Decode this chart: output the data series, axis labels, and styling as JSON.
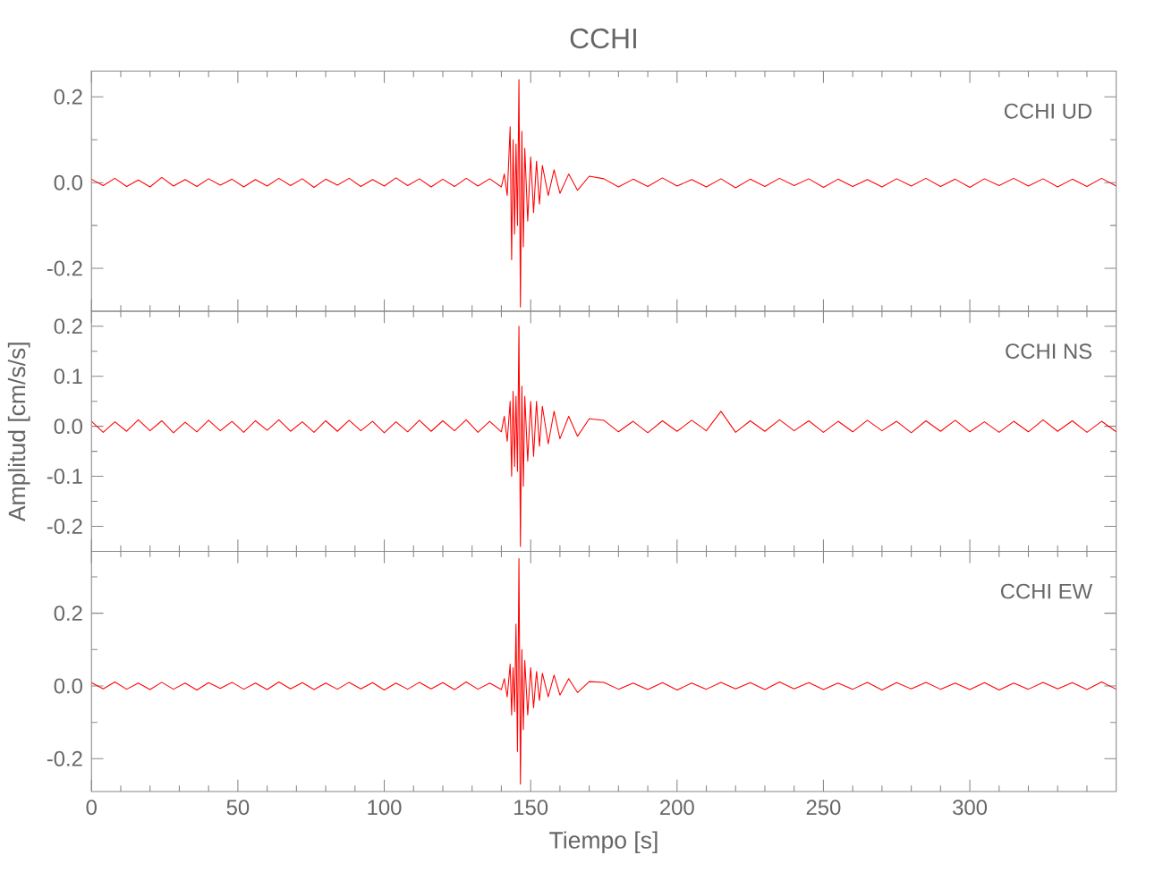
{
  "chart_data": [
    {
      "type": "line",
      "title": "CCHI",
      "annotations": [
        "CCHI   UD"
      ],
      "tick_labels": "y",
      "xlim": [
        0,
        350
      ],
      "ylim": [
        -0.3,
        0.26
      ],
      "xticks": [
        0,
        {
          "value": 10,
          "label": null
        },
        {
          "value": 20,
          "label": null
        },
        {
          "value": 30,
          "label": null
        },
        {
          "value": 40,
          "label": null
        },
        50,
        {
          "value": 60,
          "label": null
        },
        {
          "value": 70,
          "label": null
        },
        {
          "value": 80,
          "label": null
        },
        {
          "value": 90,
          "label": null
        },
        100,
        {
          "value": 110,
          "label": null
        },
        {
          "value": 120,
          "label": null
        },
        {
          "value": 130,
          "label": null
        },
        {
          "value": 140,
          "label": null
        },
        150,
        {
          "value": 160,
          "label": null
        },
        {
          "value": 170,
          "label": null
        },
        {
          "value": 180,
          "label": null
        },
        {
          "value": 190,
          "label": null
        },
        200,
        {
          "value": 210,
          "label": null
        },
        {
          "value": 220,
          "label": null
        },
        {
          "value": 230,
          "label": null
        },
        {
          "value": 240,
          "label": null
        },
        250,
        {
          "value": 260,
          "label": null
        },
        {
          "value": 270,
          "label": null
        },
        {
          "value": 280,
          "label": null
        },
        {
          "value": 290,
          "label": null
        },
        300,
        {
          "value": 310,
          "label": null
        },
        {
          "value": 320,
          "label": null
        },
        {
          "value": 330,
          "label": null
        },
        {
          "value": 340,
          "label": null
        }
      ],
      "yticks": [
        -0.2,
        {
          "value": -0.1,
          "label": null
        },
        {
          "value": 0,
          "label": "0.0"
        },
        {
          "value": 0.1,
          "label": null
        },
        0.2
      ],
      "x": [
        0,
        4,
        8,
        12,
        16,
        20,
        24,
        28,
        32,
        36,
        40,
        44,
        48,
        52,
        56,
        60,
        64,
        68,
        72,
        76,
        80,
        84,
        88,
        92,
        96,
        100,
        104,
        108,
        112,
        116,
        120,
        124,
        128,
        132,
        136,
        140,
        141,
        142,
        143,
        143.5,
        144,
        144.5,
        145,
        145.5,
        146,
        146.5,
        147,
        147.5,
        148,
        149,
        150,
        151,
        152,
        153,
        154,
        156,
        158,
        160,
        163,
        166,
        170,
        175,
        180,
        185,
        190,
        195,
        200,
        205,
        210,
        215,
        220,
        225,
        230,
        235,
        240,
        245,
        250,
        255,
        260,
        265,
        270,
        275,
        280,
        285,
        290,
        295,
        300,
        305,
        310,
        315,
        320,
        325,
        330,
        335,
        340,
        345,
        350
      ],
      "series": [
        {
          "color": "#ff0000",
          "values": [
            0.008,
            -0.007,
            0.01,
            -0.009,
            0.006,
            -0.01,
            0.012,
            -0.008,
            0.007,
            -0.009,
            0.009,
            -0.006,
            0.008,
            -0.01,
            0.007,
            -0.008,
            0.01,
            -0.007,
            0.009,
            -0.011,
            0.008,
            -0.006,
            0.01,
            -0.009,
            0.007,
            -0.008,
            0.011,
            -0.007,
            0.009,
            -0.01,
            0.008,
            -0.009,
            0.01,
            -0.008,
            0.009,
            -0.01,
            0.02,
            -0.03,
            0.13,
            -0.18,
            0.1,
            -0.12,
            0.09,
            -0.1,
            0.24,
            -0.29,
            0.12,
            -0.15,
            0.08,
            -0.09,
            0.06,
            -0.07,
            0.05,
            -0.05,
            0.04,
            -0.03,
            0.03,
            -0.025,
            0.02,
            -0.018,
            0.015,
            0.009,
            -0.01,
            0.008,
            -0.009,
            0.011,
            -0.008,
            0.007,
            -0.01,
            0.009,
            -0.012,
            0.008,
            -0.009,
            0.01,
            -0.007,
            0.009,
            -0.011,
            0.008,
            -0.009,
            0.007,
            -0.01,
            0.009,
            -0.008,
            0.01,
            -0.009,
            0.008,
            -0.011,
            0.009,
            -0.007,
            0.01,
            -0.008,
            0.009,
            -0.01,
            0.008,
            -0.009,
            0.01,
            -0.008
          ]
        }
      ]
    },
    {
      "type": "line",
      "ylabel": "Amplitud [cm/s/s]",
      "annotations": [
        "CCHI   NS"
      ],
      "tick_labels": "y",
      "xlim": [
        0,
        350
      ],
      "ylim": [
        -0.25,
        0.23
      ],
      "xticks": [
        0,
        {
          "value": 10,
          "label": null
        },
        {
          "value": 20,
          "label": null
        },
        {
          "value": 30,
          "label": null
        },
        {
          "value": 40,
          "label": null
        },
        50,
        {
          "value": 60,
          "label": null
        },
        {
          "value": 70,
          "label": null
        },
        {
          "value": 80,
          "label": null
        },
        {
          "value": 90,
          "label": null
        },
        100,
        {
          "value": 110,
          "label": null
        },
        {
          "value": 120,
          "label": null
        },
        {
          "value": 130,
          "label": null
        },
        {
          "value": 140,
          "label": null
        },
        150,
        {
          "value": 160,
          "label": null
        },
        {
          "value": 170,
          "label": null
        },
        {
          "value": 180,
          "label": null
        },
        {
          "value": 190,
          "label": null
        },
        200,
        {
          "value": 210,
          "label": null
        },
        {
          "value": 220,
          "label": null
        },
        {
          "value": 230,
          "label": null
        },
        {
          "value": 240,
          "label": null
        },
        250,
        {
          "value": 260,
          "label": null
        },
        {
          "value": 270,
          "label": null
        },
        {
          "value": 280,
          "label": null
        },
        {
          "value": 290,
          "label": null
        },
        300,
        {
          "value": 310,
          "label": null
        },
        {
          "value": 320,
          "label": null
        },
        {
          "value": 330,
          "label": null
        },
        {
          "value": 340,
          "label": null
        }
      ],
      "yticks": [
        -0.2,
        {
          "value": -0.15,
          "label": null
        },
        -0.1,
        {
          "value": -0.05,
          "label": null
        },
        {
          "value": 0,
          "label": "0.0"
        },
        {
          "value": 0.05,
          "label": null
        },
        0.1,
        {
          "value": 0.15,
          "label": null
        },
        0.2
      ],
      "x": [
        0,
        4,
        8,
        12,
        16,
        20,
        24,
        28,
        32,
        36,
        40,
        44,
        48,
        52,
        56,
        60,
        64,
        68,
        72,
        76,
        80,
        84,
        88,
        92,
        96,
        100,
        104,
        108,
        112,
        116,
        120,
        124,
        128,
        132,
        136,
        140,
        141,
        142,
        143,
        143.5,
        144,
        144.5,
        145,
        145.5,
        146,
        146.5,
        147,
        147.5,
        148,
        149,
        150,
        151,
        152,
        153,
        154,
        156,
        158,
        160,
        163,
        166,
        170,
        175,
        180,
        185,
        190,
        195,
        200,
        205,
        210,
        215,
        220,
        225,
        230,
        235,
        240,
        245,
        250,
        255,
        260,
        265,
        270,
        275,
        280,
        285,
        290,
        295,
        300,
        305,
        310,
        315,
        320,
        325,
        330,
        335,
        340,
        345,
        350
      ],
      "series": [
        {
          "color": "#ff0000",
          "values": [
            0.01,
            -0.012,
            0.009,
            -0.01,
            0.013,
            -0.009,
            0.011,
            -0.013,
            0.008,
            -0.011,
            0.012,
            -0.009,
            0.01,
            -0.012,
            0.011,
            -0.008,
            0.013,
            -0.01,
            0.009,
            -0.012,
            0.011,
            -0.01,
            0.012,
            -0.009,
            0.01,
            -0.013,
            0.009,
            -0.011,
            0.012,
            -0.01,
            0.011,
            -0.009,
            0.013,
            -0.012,
            0.01,
            -0.011,
            0.02,
            -0.03,
            0.05,
            -0.1,
            0.07,
            -0.08,
            0.06,
            -0.09,
            0.2,
            -0.24,
            0.08,
            -0.12,
            0.06,
            -0.07,
            0.05,
            -0.06,
            0.05,
            -0.04,
            0.04,
            -0.035,
            0.03,
            -0.025,
            0.02,
            -0.02,
            0.015,
            0.012,
            -0.011,
            0.01,
            -0.013,
            0.011,
            -0.01,
            0.012,
            -0.009,
            0.03,
            -0.012,
            0.011,
            -0.01,
            0.013,
            -0.009,
            0.011,
            -0.012,
            0.01,
            -0.011,
            0.012,
            -0.009,
            0.01,
            -0.013,
            0.011,
            -0.01,
            0.012,
            -0.011,
            0.009,
            -0.012,
            0.01,
            -0.011,
            0.013,
            -0.01,
            0.011,
            -0.012,
            0.01,
            -0.011
          ]
        }
      ]
    },
    {
      "type": "line",
      "xlabel": "Tiempo [s]",
      "annotations": [
        "CCHI   EW"
      ],
      "xlim": [
        0,
        350
      ],
      "ylim": [
        -0.29,
        0.37
      ],
      "xticks": [
        0,
        {
          "value": 10,
          "label": null
        },
        {
          "value": 20,
          "label": null
        },
        {
          "value": 30,
          "label": null
        },
        {
          "value": 40,
          "label": null
        },
        50,
        {
          "value": 60,
          "label": null
        },
        {
          "value": 70,
          "label": null
        },
        {
          "value": 80,
          "label": null
        },
        {
          "value": 90,
          "label": null
        },
        100,
        {
          "value": 110,
          "label": null
        },
        {
          "value": 120,
          "label": null
        },
        {
          "value": 130,
          "label": null
        },
        {
          "value": 140,
          "label": null
        },
        150,
        {
          "value": 160,
          "label": null
        },
        {
          "value": 170,
          "label": null
        },
        {
          "value": 180,
          "label": null
        },
        {
          "value": 190,
          "label": null
        },
        200,
        {
          "value": 210,
          "label": null
        },
        {
          "value": 220,
          "label": null
        },
        {
          "value": 230,
          "label": null
        },
        {
          "value": 240,
          "label": null
        },
        250,
        {
          "value": 260,
          "label": null
        },
        {
          "value": 270,
          "label": null
        },
        {
          "value": 280,
          "label": null
        },
        {
          "value": 290,
          "label": null
        },
        300,
        {
          "value": 310,
          "label": null
        },
        {
          "value": 320,
          "label": null
        },
        {
          "value": 330,
          "label": null
        },
        {
          "value": 340,
          "label": null
        }
      ],
      "yticks": [
        -0.2,
        {
          "value": -0.1,
          "label": null
        },
        {
          "value": 0,
          "label": "0.0"
        },
        {
          "value": 0.1,
          "label": null
        },
        0.2,
        {
          "value": 0.3,
          "label": null
        }
      ],
      "x": [
        0,
        4,
        8,
        12,
        16,
        20,
        24,
        28,
        32,
        36,
        40,
        44,
        48,
        52,
        56,
        60,
        64,
        68,
        72,
        76,
        80,
        84,
        88,
        92,
        96,
        100,
        104,
        108,
        112,
        116,
        120,
        124,
        128,
        132,
        136,
        140,
        141,
        142,
        143,
        143.5,
        144,
        144.5,
        145,
        145.5,
        146,
        146.5,
        147,
        147.5,
        148,
        149,
        150,
        151,
        152,
        153,
        154,
        156,
        158,
        160,
        163,
        166,
        170,
        175,
        180,
        185,
        190,
        195,
        200,
        205,
        210,
        215,
        220,
        225,
        230,
        235,
        240,
        245,
        250,
        255,
        260,
        265,
        270,
        275,
        280,
        285,
        290,
        295,
        300,
        305,
        310,
        315,
        320,
        325,
        330,
        335,
        340,
        345,
        350
      ],
      "series": [
        {
          "color": "#ff0000",
          "values": [
            0.009,
            -0.008,
            0.011,
            -0.009,
            0.008,
            -0.01,
            0.01,
            -0.009,
            0.008,
            -0.011,
            0.009,
            -0.007,
            0.01,
            -0.009,
            0.008,
            -0.01,
            0.011,
            -0.008,
            0.009,
            -0.01,
            0.008,
            -0.009,
            0.01,
            -0.008,
            0.009,
            -0.011,
            0.008,
            -0.009,
            0.01,
            -0.008,
            0.009,
            -0.01,
            0.011,
            -0.009,
            0.008,
            -0.01,
            0.02,
            -0.03,
            0.06,
            -0.08,
            0.05,
            -0.07,
            0.17,
            -0.18,
            0.35,
            -0.27,
            0.1,
            -0.12,
            0.07,
            -0.08,
            0.05,
            -0.06,
            0.04,
            -0.04,
            0.035,
            -0.03,
            0.03,
            -0.025,
            0.02,
            -0.018,
            0.012,
            0.01,
            -0.009,
            0.008,
            -0.01,
            0.009,
            -0.011,
            0.008,
            -0.009,
            0.01,
            -0.008,
            0.009,
            -0.01,
            0.011,
            -0.008,
            0.009,
            -0.01,
            0.008,
            -0.009,
            0.01,
            -0.011,
            0.009,
            -0.008,
            0.01,
            -0.009,
            0.008,
            -0.01,
            0.009,
            -0.011,
            0.008,
            -0.009,
            0.01,
            -0.008,
            0.009,
            -0.01,
            0.011,
            -0.009
          ]
        }
      ]
    }
  ]
}
